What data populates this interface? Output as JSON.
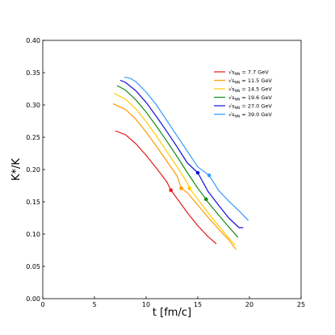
{
  "chart_data": {
    "type": "line",
    "title": "",
    "xlabel": "t [fm/c]",
    "ylabel": "K*/K",
    "xlim": [
      0,
      25
    ],
    "ylim": [
      0,
      0.4
    ],
    "xticks": [
      0,
      5,
      10,
      15,
      20,
      25
    ],
    "yticks": [
      0.0,
      0.05,
      0.1,
      0.15,
      0.2,
      0.25,
      0.3,
      0.35,
      0.4
    ],
    "xtick_labels": [
      "0",
      "5",
      "10",
      "15",
      "20",
      "25"
    ],
    "ytick_labels": [
      "0.00",
      "0.05",
      "0.10",
      "0.15",
      "0.20",
      "0.25",
      "0.30",
      "0.35",
      "0.40"
    ],
    "grid": false,
    "legend_placement": "top-right",
    "legend_prefix": "√s",
    "legend_sub": "NN",
    "series": [
      {
        "name": "= 7.7 GeV",
        "color": "#e41a1c",
        "x": [
          7.0,
          8.0,
          9.0,
          10.0,
          11.0,
          12.0,
          12.4,
          13.0,
          14.0,
          15.0,
          16.0,
          16.8
        ],
        "y": [
          0.26,
          0.254,
          0.24,
          0.222,
          0.202,
          0.181,
          0.168,
          0.155,
          0.133,
          0.113,
          0.096,
          0.085
        ],
        "marker": {
          "x": 12.4,
          "y": 0.168
        }
      },
      {
        "name": "= 11.5 GeV",
        "color": "#ff9900",
        "x": [
          6.8,
          8.0,
          9.0,
          10.0,
          11.0,
          12.0,
          13.0,
          13.4,
          14.0,
          15.0,
          16.0,
          17.0,
          18.0,
          18.7
        ],
        "y": [
          0.302,
          0.293,
          0.278,
          0.258,
          0.236,
          0.213,
          0.19,
          0.171,
          0.164,
          0.145,
          0.126,
          0.108,
          0.091,
          0.076
        ],
        "marker": {
          "x": 13.4,
          "y": 0.171
        }
      },
      {
        "name": "= 14.5 GeV",
        "color": "#ffcc00",
        "x": [
          6.9,
          8.0,
          9.0,
          10.0,
          11.0,
          12.0,
          13.0,
          14.0,
          14.2,
          15.0,
          16.0,
          17.0,
          18.0,
          18.6
        ],
        "y": [
          0.318,
          0.309,
          0.294,
          0.274,
          0.252,
          0.228,
          0.204,
          0.179,
          0.171,
          0.154,
          0.133,
          0.113,
          0.094,
          0.083
        ],
        "marker": {
          "x": 14.2,
          "y": 0.171
        }
      },
      {
        "name": "= 19.6 GeV",
        "color": "#118c11",
        "x": [
          7.2,
          8.0,
          9.0,
          10.0,
          11.0,
          12.0,
          13.0,
          14.0,
          15.0,
          15.8,
          16.0,
          17.0,
          18.0,
          18.9
        ],
        "y": [
          0.33,
          0.323,
          0.308,
          0.289,
          0.267,
          0.244,
          0.22,
          0.195,
          0.171,
          0.154,
          0.149,
          0.13,
          0.111,
          0.095
        ],
        "marker": {
          "x": 15.8,
          "y": 0.154
        }
      },
      {
        "name": "= 27.0 GeV",
        "color": "#1010dd",
        "x": [
          7.5,
          8.0,
          9.0,
          10.0,
          11.0,
          12.0,
          13.0,
          14.0,
          15.0,
          16.0,
          17.0,
          18.0,
          19.0,
          19.4
        ],
        "y": [
          0.338,
          0.335,
          0.322,
          0.304,
          0.282,
          0.259,
          0.235,
          0.21,
          0.195,
          0.166,
          0.145,
          0.125,
          0.11,
          0.11
        ],
        "marker": {
          "x": 15.0,
          "y": 0.195
        }
      },
      {
        "name": "= 39.0 GeV",
        "color": "#3399ff",
        "x": [
          7.9,
          8.5,
          9.0,
          10.0,
          11.0,
          12.0,
          13.0,
          14.0,
          15.0,
          16.1,
          17.0,
          18.0,
          19.0,
          19.9
        ],
        "y": [
          0.343,
          0.341,
          0.336,
          0.32,
          0.3,
          0.276,
          0.252,
          0.228,
          0.204,
          0.191,
          0.168,
          0.151,
          0.136,
          0.121
        ],
        "marker": {
          "x": 16.1,
          "y": 0.191
        }
      }
    ]
  }
}
